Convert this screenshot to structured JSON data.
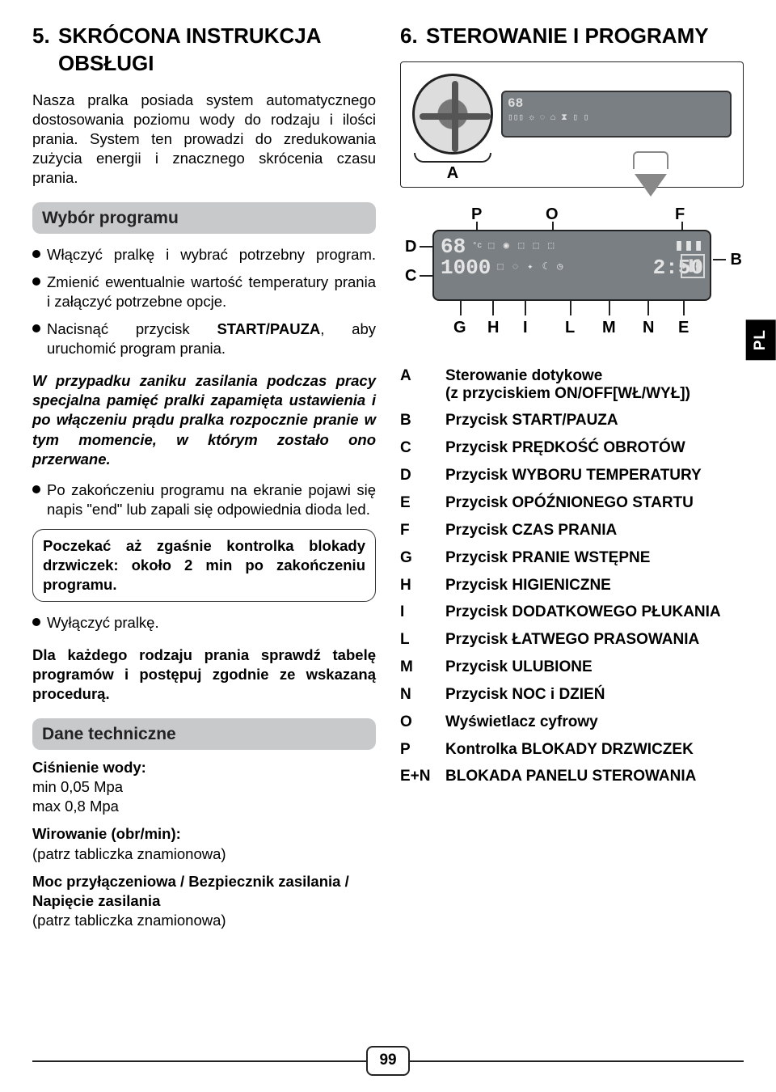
{
  "page_number": "99",
  "side_tab": "PL",
  "left": {
    "section_number": "5.",
    "section_title": "SKRÓCONA INSTRUKCJA OBSŁUGI",
    "intro": "Nasza pralka posiada system automatycznego dostosowania poziomu wody do rodzaju i ilości prania. System ten prowadzi do zredukowania zużycia energii i znacznego skrócenia czasu prania.",
    "h_program": "Wybór programu",
    "bullets": [
      "Włączyć pralkę i wybrać potrzebny program.",
      "Zmienić ewentualnie wartość temperatury prania i załączyć potrzebne opcje.",
      "Nacisnąć przycisk START/PAUZA, aby uruchomić program prania."
    ],
    "bullet3_html_before": "Nacisnąć przycisk ",
    "bullet3_bold": "START/PAUZA",
    "bullet3_after": ", aby uruchomić program prania.",
    "italic_para": "W przypadku zaniku zasilania podczas pracy specjalna pamięć pralki zapamięta ustawienia i po włączeniu prądu pralka rozpocznie pranie w tym momencie, w którym zostało ono przerwane.",
    "bullet_end": "Po zakończeniu programu na ekranie pojawi się napis \"end\" lub zapali się odpowiednia dioda led.",
    "box_text": "Poczekać aż zgaśnie kontrolka blokady drzwiczek: około 2 min po zakończeniu programu.",
    "bullet_off": "Wyłączyć pralkę.",
    "bold_para": "Dla każdego rodzaju prania sprawdź tabelę programów i postępuj zgodnie ze wskazaną procedurą.",
    "h_tech": "Dane techniczne",
    "tech": {
      "p1_bold": "Ciśnienie wody:",
      "p1_l1": "min 0,05 Mpa",
      "p1_l2": "max 0,8 Mpa",
      "p2_bold": "Wirowanie (obr/min):",
      "p2_l1": "(patrz tabliczka znamionowa)",
      "p3_bold": "Moc przyłączeniowa / Bezpiecznik zasilania / Napięcie zasilania",
      "p3_l1": "(patrz tabliczka znamionowa)"
    }
  },
  "right": {
    "section_number": "6.",
    "section_title": "STEROWANIE I PROGRAMY",
    "diagram": {
      "dial_label": "A",
      "top_letters": {
        "P": "P",
        "O": "O",
        "F": "F"
      },
      "left_letters": {
        "D": "D",
        "C": "C"
      },
      "right_letter": "B",
      "bottom_letters": [
        "G",
        "H",
        "I",
        "L",
        "M",
        "N",
        "E"
      ],
      "seg1": "68",
      "seg2": "1000",
      "time": "2:50"
    },
    "legend_A_line1": "Sterowanie dotykowe",
    "legend_A_line2": "(z przyciskiem ON/OFF[WŁ/WYŁ])",
    "legend": [
      {
        "k": "B",
        "v": "Przycisk START/PAUZA"
      },
      {
        "k": "C",
        "v": "Przycisk PRĘDKOŚĆ OBROTÓW"
      },
      {
        "k": "D",
        "v": "Przycisk WYBORU TEMPERATURY"
      },
      {
        "k": "E",
        "v": "Przycisk OPÓŹNIONEGO STARTU"
      },
      {
        "k": "F",
        "v": "Przycisk CZAS PRANIA"
      },
      {
        "k": "G",
        "v": "Przycisk PRANIE WSTĘPNE"
      },
      {
        "k": "H",
        "v": "Przycisk HIGIENICZNE"
      },
      {
        "k": "I",
        "v": "Przycisk DODATKOWEGO PŁUKANIA"
      },
      {
        "k": "L",
        "v": "Przycisk ŁATWEGO PRASOWANIA"
      },
      {
        "k": "M",
        "v": "Przycisk ULUBIONE"
      },
      {
        "k": "N",
        "v": "Przycisk NOC i DZIEŃ"
      },
      {
        "k": "O",
        "v": "Wyświetlacz cyfrowy"
      },
      {
        "k": "P",
        "v": "Kontrolka BLOKADY DRZWICZEK"
      },
      {
        "k": "E+N",
        "v": "BLOKADA PANELU STEROWANIA"
      }
    ]
  }
}
